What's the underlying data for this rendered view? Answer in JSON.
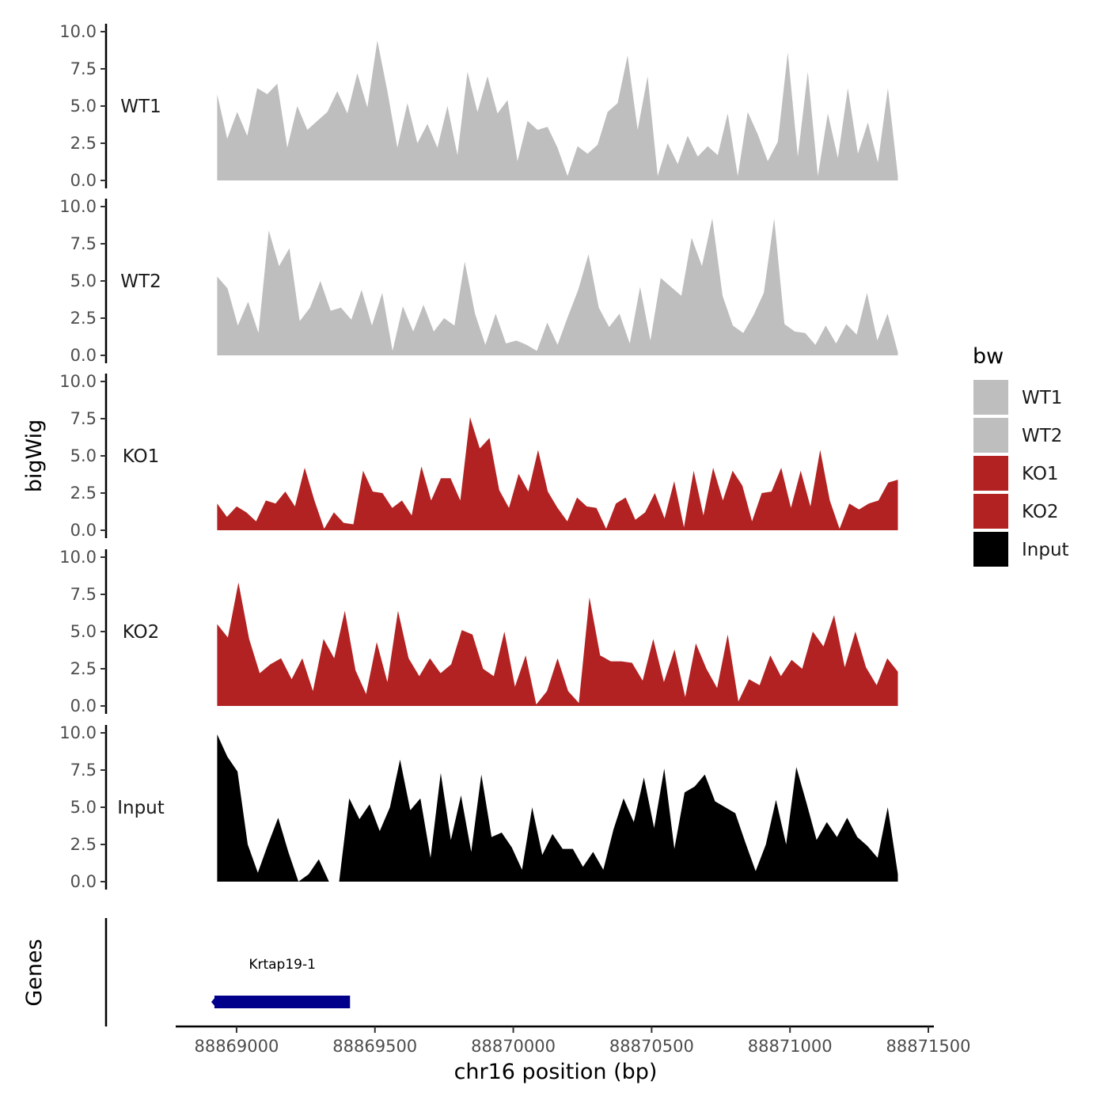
{
  "chart_data": {
    "type": "area",
    "y_axis_title": "bigWig",
    "genes_axis_title": "Genes",
    "x_axis_title": "chr16 position (bp)",
    "xlim": [
      88868780,
      88871520
    ],
    "data_range": [
      88868930,
      88871390
    ],
    "x_ticks": [
      88869000,
      88869500,
      88870000,
      88870500,
      88871000,
      88871500
    ],
    "x_tick_labels": [
      "88869000",
      "88869500",
      "88870000",
      "88870500",
      "88871000",
      "88871500"
    ],
    "y_range": [
      0,
      10
    ],
    "y_ticks": [
      0,
      2.5,
      5,
      7.5,
      10
    ],
    "y_tick_labels": [
      "0.0",
      "2.5",
      "5.0",
      "7.5",
      "10.0"
    ],
    "legend": {
      "title": "bw",
      "entries": [
        {
          "label": "WT1",
          "color": "#bebebe"
        },
        {
          "label": "WT2",
          "color": "#bebebe"
        },
        {
          "label": "KO1",
          "color": "#b22222"
        },
        {
          "label": "KO2",
          "color": "#b22222"
        },
        {
          "label": "Input",
          "color": "#000000"
        }
      ]
    },
    "series": [
      {
        "name": "WT1",
        "color": "#bebebe",
        "values": [
          5.8,
          2.8,
          4.6,
          3.0,
          6.2,
          5.8,
          6.5,
          2.2,
          5.0,
          3.4,
          4.0,
          4.6,
          6.0,
          4.5,
          7.2,
          4.9,
          9.4,
          6.0,
          2.2,
          5.2,
          2.5,
          3.8,
          2.2,
          5.0,
          1.7,
          7.3,
          4.6,
          7.0,
          4.5,
          5.4,
          1.3,
          4.0,
          3.4,
          3.6,
          2.2,
          0.3,
          2.3,
          1.8,
          2.4,
          4.6,
          5.2,
          8.4,
          3.4,
          7.0,
          0.3,
          2.5,
          1.1,
          3.0,
          1.6,
          2.3,
          1.7,
          4.5,
          0.3,
          4.6,
          3.1,
          1.3,
          2.6,
          8.6,
          1.6,
          7.3,
          0.3,
          4.5,
          1.5,
          6.2,
          1.8,
          3.9,
          1.2,
          6.2,
          0.3
        ]
      },
      {
        "name": "WT2",
        "color": "#bebebe",
        "values": [
          5.3,
          4.5,
          2.0,
          3.6,
          1.5,
          8.4,
          6.0,
          7.2,
          2.3,
          3.2,
          5.0,
          3.0,
          3.2,
          2.4,
          4.4,
          2.0,
          4.2,
          0.3,
          3.3,
          1.6,
          3.4,
          1.6,
          2.5,
          2.0,
          6.3,
          2.8,
          0.7,
          2.8,
          0.8,
          1.0,
          0.7,
          0.3,
          2.2,
          0.7,
          2.6,
          4.4,
          6.8,
          3.2,
          1.9,
          2.8,
          0.8,
          4.6,
          1.0,
          5.2,
          4.6,
          4.0,
          7.9,
          6.0,
          9.2,
          4.0,
          2.0,
          1.5,
          2.7,
          4.2,
          9.2,
          2.1,
          1.6,
          1.5,
          0.7,
          2.0,
          0.8,
          2.1,
          1.4,
          4.2,
          1.0,
          2.8,
          0.2
        ]
      },
      {
        "name": "KO1",
        "color": "#b22222",
        "values": [
          1.8,
          0.9,
          1.6,
          1.2,
          0.6,
          2.0,
          1.8,
          2.6,
          1.6,
          4.2,
          2.0,
          0.1,
          1.2,
          0.5,
          0.4,
          4.0,
          2.6,
          2.5,
          1.5,
          2.0,
          1.0,
          4.3,
          2.0,
          3.5,
          3.5,
          2.0,
          7.6,
          5.5,
          6.2,
          2.7,
          1.5,
          3.8,
          2.6,
          5.4,
          2.6,
          1.5,
          0.6,
          2.2,
          1.6,
          1.5,
          0.1,
          1.8,
          2.2,
          0.7,
          1.2,
          2.5,
          0.8,
          3.3,
          0.2,
          4.0,
          1.0,
          4.2,
          2.0,
          4.0,
          3.0,
          0.6,
          2.5,
          2.6,
          4.2,
          1.5,
          4.0,
          1.6,
          5.4,
          2.0,
          0.1,
          1.8,
          1.4,
          1.8,
          2.0,
          3.2,
          3.4
        ]
      },
      {
        "name": "KO2",
        "color": "#b22222",
        "values": [
          5.5,
          4.6,
          8.3,
          4.5,
          2.2,
          2.8,
          3.2,
          1.8,
          3.2,
          1.0,
          4.5,
          3.2,
          6.4,
          2.4,
          0.8,
          4.3,
          1.6,
          6.4,
          3.2,
          2.0,
          3.2,
          2.2,
          2.8,
          5.1,
          4.8,
          2.5,
          2.0,
          5.0,
          1.3,
          3.4,
          0.1,
          1.0,
          3.2,
          1.0,
          0.2,
          7.3,
          3.4,
          3.0,
          3.0,
          2.9,
          1.7,
          4.5,
          1.6,
          3.8,
          0.6,
          4.2,
          2.5,
          1.2,
          4.8,
          0.3,
          1.8,
          1.4,
          3.4,
          2.0,
          3.1,
          2.5,
          5.0,
          4.0,
          6.1,
          2.6,
          5.0,
          2.6,
          1.4,
          3.2,
          2.3
        ]
      },
      {
        "name": "Input",
        "color": "#000000",
        "values": [
          9.9,
          8.4,
          7.4,
          2.5,
          0.6,
          2.5,
          4.3,
          2.0,
          0.0,
          0.5,
          1.5,
          0.0,
          0.0,
          5.6,
          4.2,
          5.2,
          3.4,
          5.0,
          8.2,
          4.8,
          5.6,
          1.6,
          7.3,
          2.8,
          5.8,
          2.0,
          7.2,
          3.0,
          3.3,
          2.3,
          0.8,
          5.0,
          1.8,
          3.2,
          2.2,
          2.2,
          1.0,
          2.0,
          0.8,
          3.5,
          5.6,
          4.0,
          7.0,
          3.6,
          7.6,
          2.2,
          6.0,
          6.4,
          7.2,
          5.4,
          5.0,
          4.6,
          2.6,
          0.7,
          2.5,
          5.5,
          2.5,
          7.7,
          5.3,
          2.8,
          4.0,
          3.0,
          4.3,
          3.0,
          2.4,
          1.6,
          5.0,
          0.5
        ]
      }
    ],
    "gene_track": {
      "genes": [
        {
          "name": "Krtap19-1",
          "start": 88868920,
          "end": 88869410,
          "color": "#00008b",
          "strand": "-"
        }
      ]
    }
  }
}
